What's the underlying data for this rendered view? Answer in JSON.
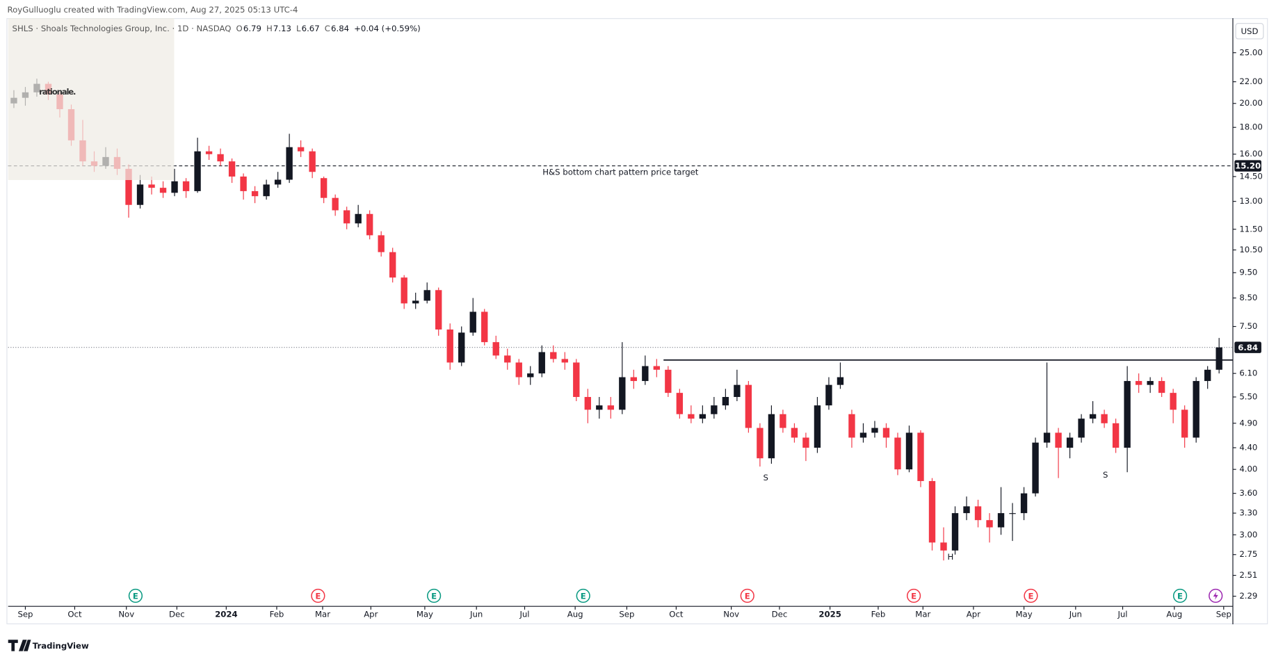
{
  "header": {
    "credit": "RoyGulluoglu created with TradingView.com, Aug 27, 2025 05:13 UTC-4",
    "symbol": "SHLS · Shoals Technologies Group, Inc. · 1D · NASDAQ",
    "ohlc": [
      {
        "key": "O",
        "val": "6.79"
      },
      {
        "key": "H",
        "val": "7.13"
      },
      {
        "key": "L",
        "val": "6.67"
      },
      {
        "key": "C",
        "val": "6.84"
      }
    ],
    "change": "+0.04 (+0.59%)",
    "currency": "USD",
    "watermark": "rationale.",
    "brand": "TradingView"
  },
  "chart_data": {
    "type": "candlestick",
    "log_scale": true,
    "grid": false,
    "up_color": "#131722",
    "down_color": "#f23645",
    "xlim": [
      0,
      106.7
    ],
    "ylim": [
      2.19,
      29.1
    ],
    "xticks": [
      {
        "value": 1.5,
        "label": "Sep"
      },
      {
        "value": 5.8,
        "label": "Oct"
      },
      {
        "value": 10.3,
        "label": "Nov"
      },
      {
        "value": 14.7,
        "label": "Dec"
      },
      {
        "value": 19,
        "label": "2024"
      },
      {
        "value": 23.4,
        "label": "Feb"
      },
      {
        "value": 27.4,
        "label": "Mar"
      },
      {
        "value": 31.6,
        "label": "Apr"
      },
      {
        "value": 36.3,
        "label": "May"
      },
      {
        "value": 40.8,
        "label": "Jun"
      },
      {
        "value": 45,
        "label": "Jul"
      },
      {
        "value": 49.4,
        "label": "Aug"
      },
      {
        "value": 53.9,
        "label": "Sep"
      },
      {
        "value": 58.2,
        "label": "Oct"
      },
      {
        "value": 63,
        "label": "Nov"
      },
      {
        "value": 67.2,
        "label": "Dec"
      },
      {
        "value": 71.6,
        "label": "2025"
      },
      {
        "value": 75.8,
        "label": "Feb"
      },
      {
        "value": 79.7,
        "label": "Mar"
      },
      {
        "value": 84.1,
        "label": "Apr"
      },
      {
        "value": 88.5,
        "label": "May"
      },
      {
        "value": 93,
        "label": "Jun"
      },
      {
        "value": 97.1,
        "label": "Jul"
      },
      {
        "value": 101.6,
        "label": "Aug"
      },
      {
        "value": 105.9,
        "label": "Sep"
      }
    ],
    "yticks": [
      {
        "value": 25,
        "label": "25.00"
      },
      {
        "value": 22,
        "label": "22.00"
      },
      {
        "value": 20,
        "label": "20.00"
      },
      {
        "value": 18,
        "label": "18.00"
      },
      {
        "value": 16,
        "label": "16.00"
      },
      {
        "value": 14.5,
        "label": "14.50"
      },
      {
        "value": 13,
        "label": "13.00"
      },
      {
        "value": 11.5,
        "label": "11.50"
      },
      {
        "value": 10.5,
        "label": "10.50"
      },
      {
        "value": 9.5,
        "label": "9.50"
      },
      {
        "value": 8.5,
        "label": "8.50"
      },
      {
        "value": 7.5,
        "label": "7.50"
      },
      {
        "value": 6.1,
        "label": "6.10"
      },
      {
        "value": 5.5,
        "label": "5.50"
      },
      {
        "value": 4.9,
        "label": "4.90"
      },
      {
        "value": 4.4,
        "label": "4.40"
      },
      {
        "value": 4,
        "label": "4.00"
      },
      {
        "value": 3.6,
        "label": "3.60"
      },
      {
        "value": 3.3,
        "label": "3.30"
      },
      {
        "value": 3,
        "label": "3.00"
      },
      {
        "value": 2.75,
        "label": "2.75"
      },
      {
        "value": 2.51,
        "label": "2.51"
      },
      {
        "value": 2.29,
        "label": "2.29"
      }
    ],
    "candles": [
      [
        20.0,
        21.2,
        19.6,
        20.5
      ],
      [
        20.5,
        21.5,
        19.8,
        21.0
      ],
      [
        21.0,
        22.3,
        20.6,
        21.8
      ],
      [
        21.8,
        22.0,
        20.3,
        20.8
      ],
      [
        20.8,
        21.0,
        18.8,
        19.5
      ],
      [
        19.5,
        19.9,
        16.6,
        17.0
      ],
      [
        17.0,
        18.6,
        15.2,
        15.5
      ],
      [
        15.5,
        16.2,
        14.8,
        15.2
      ],
      [
        15.2,
        16.5,
        15.0,
        15.8
      ],
      [
        15.8,
        16.4,
        14.6,
        15.0
      ],
      [
        15.0,
        15.3,
        12.1,
        12.8
      ],
      [
        12.8,
        14.6,
        12.6,
        14.0
      ],
      [
        14.0,
        14.5,
        13.4,
        13.8
      ],
      [
        13.8,
        14.2,
        13.2,
        13.5
      ],
      [
        13.5,
        15.0,
        13.3,
        14.2
      ],
      [
        14.2,
        14.4,
        13.2,
        13.6
      ],
      [
        13.6,
        17.2,
        13.5,
        16.2
      ],
      [
        16.2,
        16.6,
        15.6,
        16.0
      ],
      [
        16.0,
        16.4,
        15.2,
        15.5
      ],
      [
        15.5,
        15.7,
        14.1,
        14.5
      ],
      [
        14.5,
        14.7,
        13.1,
        13.6
      ],
      [
        13.6,
        13.9,
        12.9,
        13.3
      ],
      [
        13.3,
        14.3,
        13.1,
        14.0
      ],
      [
        14.0,
        14.8,
        13.8,
        14.3
      ],
      [
        14.3,
        17.5,
        14.1,
        16.5
      ],
      [
        16.5,
        17.0,
        15.8,
        16.2
      ],
      [
        16.2,
        16.4,
        14.4,
        14.8
      ],
      [
        14.4,
        14.5,
        12.9,
        13.2
      ],
      [
        13.2,
        13.4,
        12.2,
        12.5
      ],
      [
        12.5,
        12.7,
        11.5,
        11.8
      ],
      [
        11.8,
        12.8,
        11.6,
        12.3
      ],
      [
        12.3,
        12.5,
        11.0,
        11.2
      ],
      [
        11.2,
        11.4,
        10.2,
        10.4
      ],
      [
        10.4,
        10.6,
        9.1,
        9.3
      ],
      [
        9.3,
        9.4,
        8.1,
        8.3
      ],
      [
        8.3,
        8.7,
        8.1,
        8.4
      ],
      [
        8.4,
        9.1,
        8.3,
        8.8
      ],
      [
        8.8,
        8.9,
        7.2,
        7.4
      ],
      [
        7.4,
        7.6,
        6.2,
        6.4
      ],
      [
        6.4,
        7.5,
        6.3,
        7.3
      ],
      [
        7.3,
        8.5,
        7.2,
        8.0
      ],
      [
        8.0,
        8.1,
        6.9,
        7.0
      ],
      [
        7.0,
        7.2,
        6.5,
        6.6
      ],
      [
        6.6,
        6.8,
        6.2,
        6.4
      ],
      [
        6.4,
        6.5,
        5.8,
        6.0
      ],
      [
        6.0,
        6.3,
        5.8,
        6.1
      ],
      [
        6.1,
        6.9,
        6.0,
        6.7
      ],
      [
        6.7,
        6.9,
        6.4,
        6.5
      ],
      [
        6.5,
        6.7,
        6.2,
        6.4
      ],
      [
        6.4,
        6.5,
        5.4,
        5.5
      ],
      [
        5.5,
        5.7,
        4.9,
        5.2
      ],
      [
        5.2,
        5.5,
        5.0,
        5.3
      ],
      [
        5.3,
        5.5,
        5.0,
        5.2
      ],
      [
        5.2,
        7.0,
        5.1,
        6.0
      ],
      [
        6.0,
        6.2,
        5.7,
        5.9
      ],
      [
        5.9,
        6.6,
        5.8,
        6.3
      ],
      [
        6.3,
        6.5,
        6.0,
        6.2
      ],
      [
        6.2,
        6.3,
        5.5,
        5.6
      ],
      [
        5.6,
        5.7,
        5.0,
        5.1
      ],
      [
        5.1,
        5.3,
        4.9,
        5.0
      ],
      [
        5.0,
        5.3,
        4.9,
        5.1
      ],
      [
        5.1,
        5.5,
        5.0,
        5.3
      ],
      [
        5.3,
        5.7,
        5.2,
        5.5
      ],
      [
        5.5,
        6.2,
        5.4,
        5.8
      ],
      [
        5.8,
        5.9,
        4.7,
        4.8
      ],
      [
        4.8,
        4.9,
        4.05,
        4.2
      ],
      [
        4.2,
        5.3,
        4.1,
        5.1
      ],
      [
        5.1,
        5.2,
        4.7,
        4.8
      ],
      [
        4.8,
        4.9,
        4.5,
        4.6
      ],
      [
        4.6,
        4.7,
        4.15,
        4.4
      ],
      [
        4.4,
        5.5,
        4.3,
        5.3
      ],
      [
        5.3,
        6.0,
        5.2,
        5.8
      ],
      [
        5.8,
        6.4,
        5.7,
        6.0
      ],
      [
        5.1,
        5.2,
        4.4,
        4.6
      ],
      [
        4.6,
        4.9,
        4.5,
        4.7
      ],
      [
        4.7,
        4.95,
        4.6,
        4.8
      ],
      [
        4.8,
        4.9,
        4.4,
        4.6
      ],
      [
        4.6,
        4.7,
        3.9,
        4.0
      ],
      [
        4.0,
        4.85,
        3.95,
        4.7
      ],
      [
        4.7,
        4.75,
        3.7,
        3.8
      ],
      [
        3.8,
        3.85,
        2.8,
        2.9
      ],
      [
        2.9,
        3.1,
        2.68,
        2.8
      ],
      [
        2.8,
        3.4,
        2.75,
        3.3
      ],
      [
        3.3,
        3.55,
        3.2,
        3.4
      ],
      [
        3.4,
        3.5,
        3.1,
        3.2
      ],
      [
        3.2,
        3.3,
        2.9,
        3.1
      ],
      [
        3.1,
        3.7,
        3.0,
        3.3
      ],
      [
        3.3,
        3.45,
        2.92,
        3.3
      ],
      [
        3.3,
        3.7,
        3.2,
        3.6
      ],
      [
        3.6,
        4.6,
        3.55,
        4.5
      ],
      [
        4.5,
        6.4,
        4.4,
        4.7
      ],
      [
        4.7,
        4.8,
        3.85,
        4.4
      ],
      [
        4.4,
        4.7,
        4.2,
        4.6
      ],
      [
        4.6,
        5.1,
        4.5,
        5.0
      ],
      [
        5.0,
        5.4,
        4.9,
        5.1
      ],
      [
        5.1,
        5.2,
        4.8,
        4.9
      ],
      [
        4.9,
        5.0,
        4.3,
        4.4
      ],
      [
        4.4,
        6.3,
        3.95,
        5.9
      ],
      [
        5.9,
        6.1,
        5.6,
        5.8
      ],
      [
        5.8,
        6.0,
        5.6,
        5.9
      ],
      [
        5.9,
        6.0,
        5.5,
        5.6
      ],
      [
        5.6,
        5.7,
        4.9,
        5.2
      ],
      [
        5.2,
        5.3,
        4.4,
        4.6
      ],
      [
        4.6,
        6.0,
        4.5,
        5.9
      ],
      [
        5.9,
        6.3,
        5.7,
        6.2
      ],
      [
        6.2,
        7.13,
        6.1,
        6.84
      ]
    ],
    "target": {
      "value": 15.2,
      "label": "15.20",
      "text": "H&S bottom chart pattern price target"
    },
    "last_price": {
      "value": 6.84,
      "label": "6.84"
    },
    "neckline": {
      "value": 6.47,
      "x_range": [
        57.1,
        106.7
      ]
    },
    "pattern_labels": [
      {
        "text": "S",
        "x": 66,
        "y": 3.85
      },
      {
        "text": "H",
        "x": 82.1,
        "y": 2.72
      },
      {
        "text": "S",
        "x": 95.6,
        "y": 3.9
      }
    ],
    "events": [
      {
        "x": 11.1,
        "label": "E",
        "color": "#089981"
      },
      {
        "x": 27.0,
        "label": "E",
        "color": "#f23645"
      },
      {
        "x": 37.1,
        "label": "E",
        "color": "#089981"
      },
      {
        "x": 50.1,
        "label": "E",
        "color": "#089981"
      },
      {
        "x": 64.4,
        "label": "E",
        "color": "#f23645"
      },
      {
        "x": 78.9,
        "label": "E",
        "color": "#f23645"
      },
      {
        "x": 89.1,
        "label": "E",
        "color": "#f23645"
      },
      {
        "x": 102.1,
        "label": "E",
        "color": "#089981"
      },
      {
        "x": 105.2,
        "color": "#9c27b0"
      }
    ]
  }
}
